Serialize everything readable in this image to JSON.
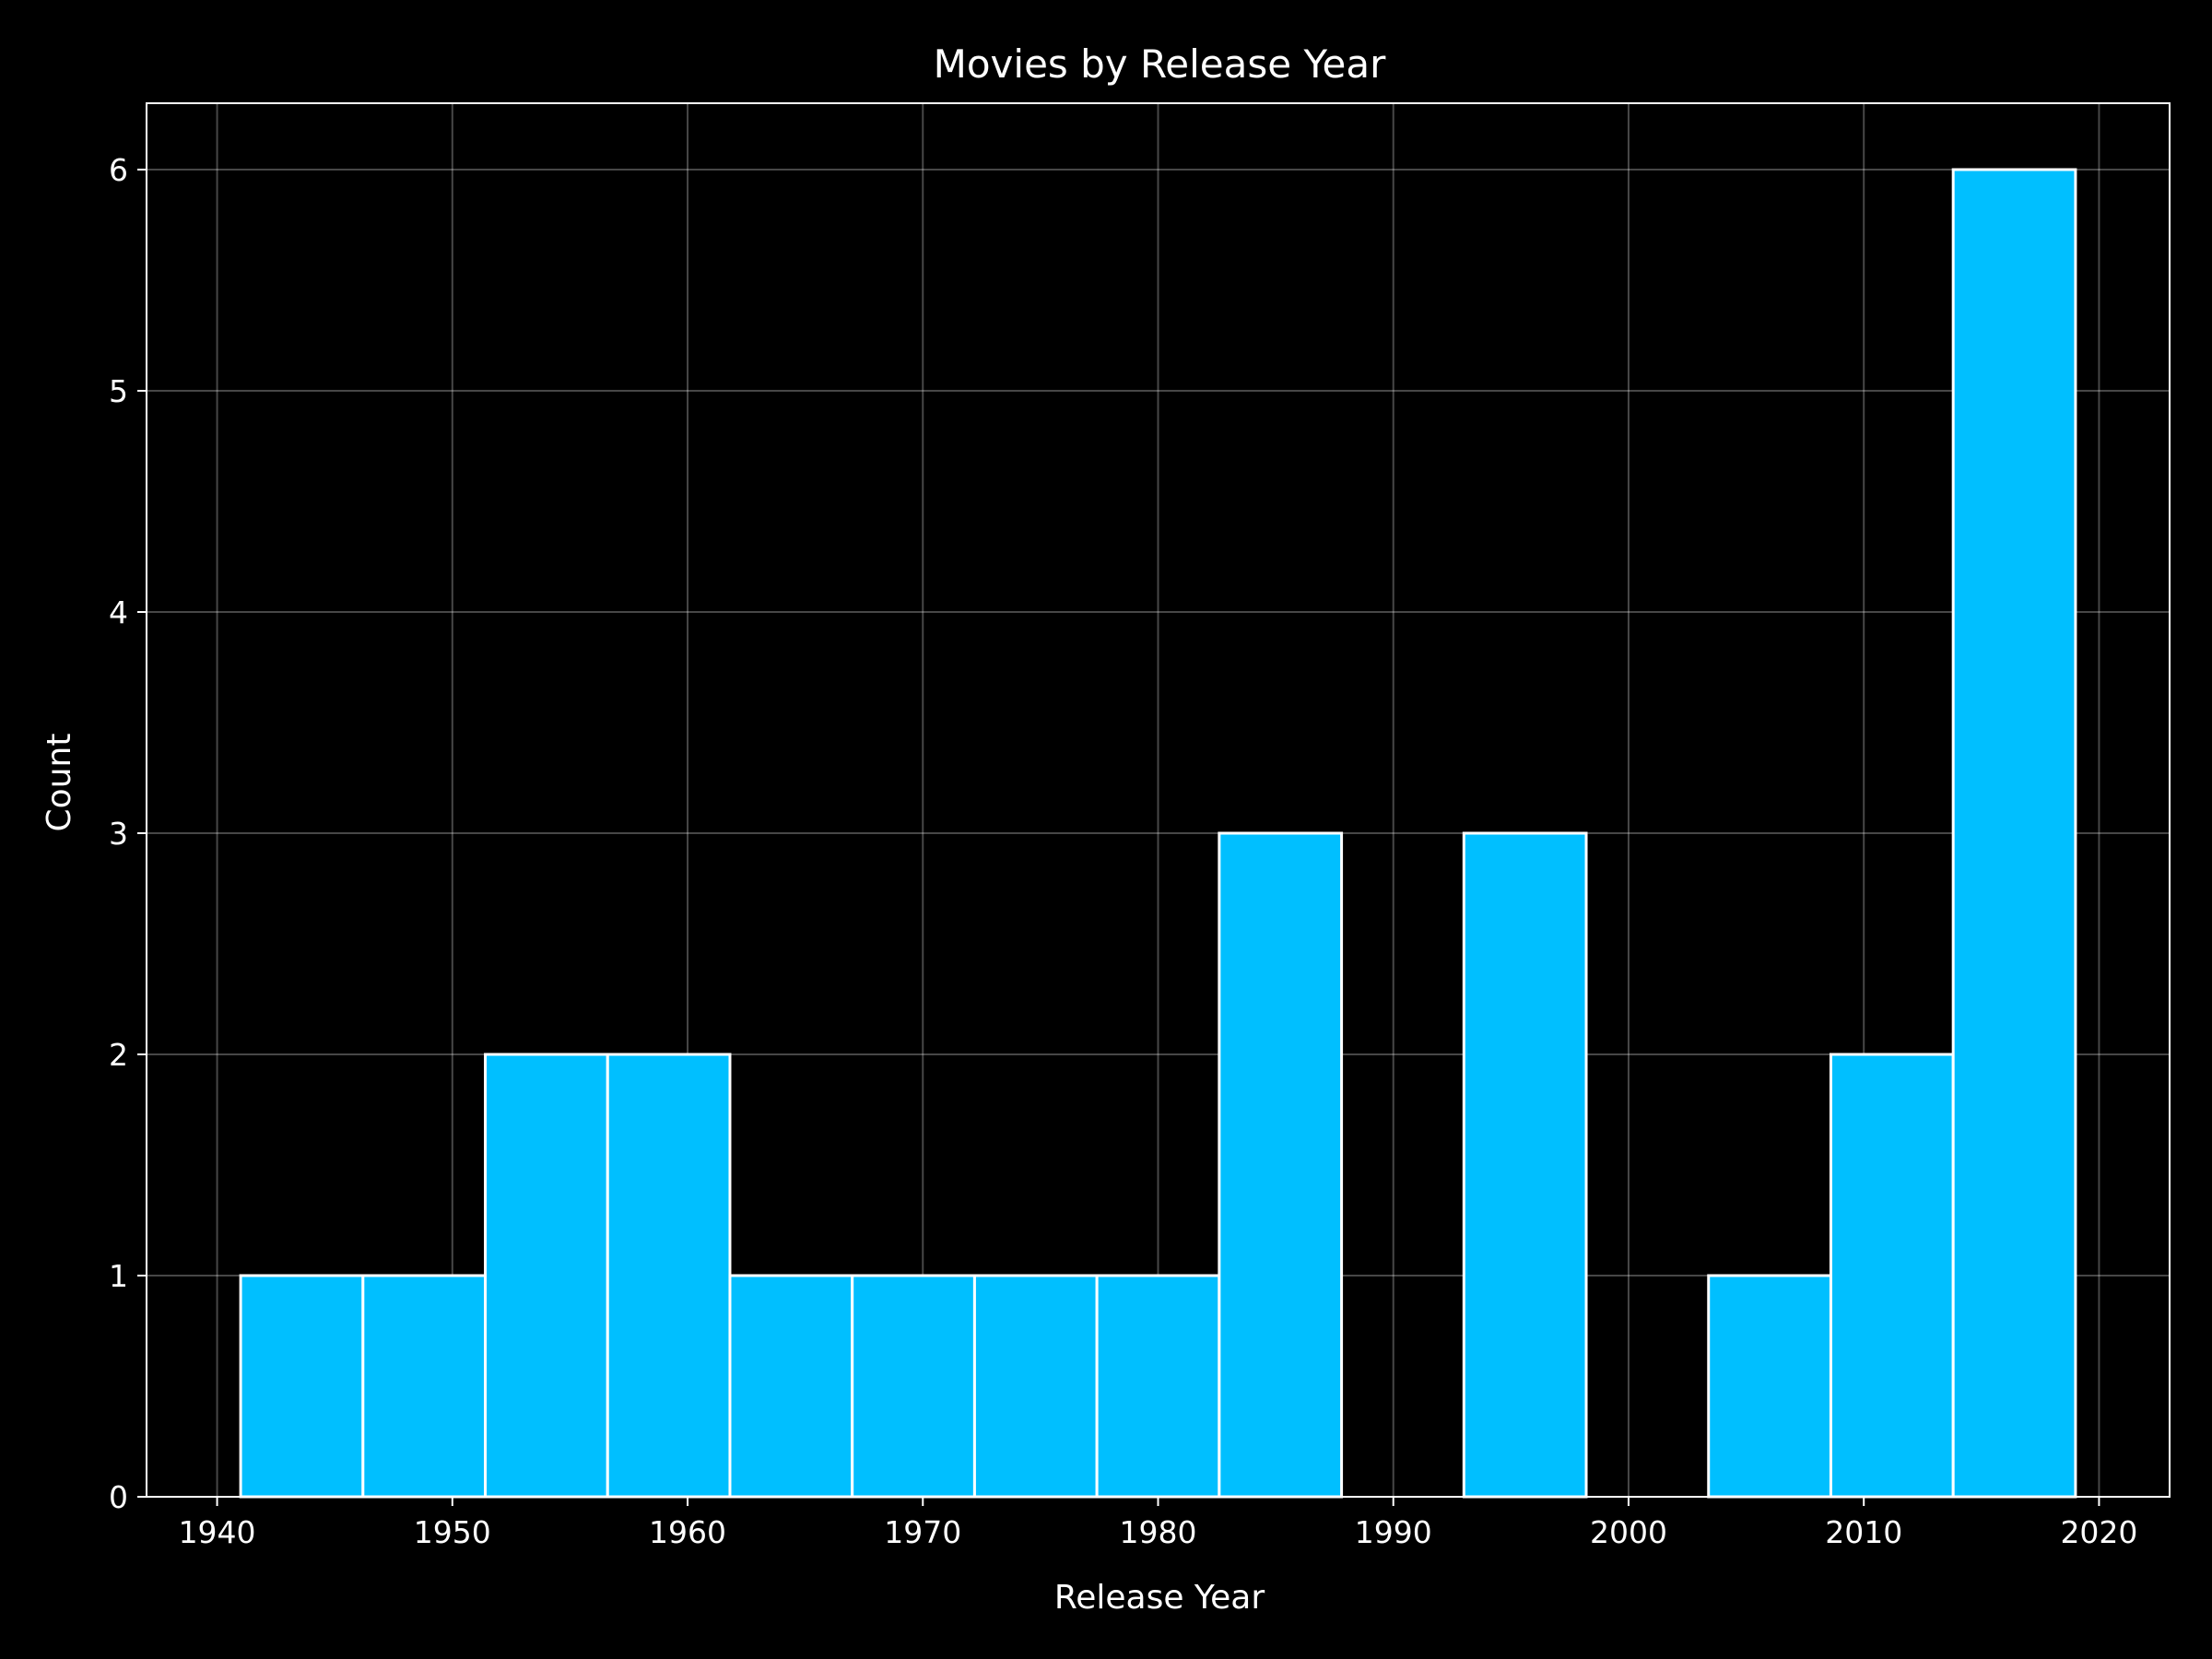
{
  "chart_data": {
    "type": "bar",
    "title": "Movies by Release Year",
    "xlabel": "Release Year",
    "ylabel": "Count",
    "xlim": [
      1937,
      2023
    ],
    "ylim": [
      0,
      6.3
    ],
    "x_ticks": [
      1940,
      1950,
      1960,
      1970,
      1980,
      1990,
      2000,
      2010,
      2020
    ],
    "y_ticks": [
      0,
      1,
      2,
      3,
      4,
      5,
      6
    ],
    "grid": true,
    "bins": [
      {
        "start": 1941.0,
        "end": 1946.2,
        "count": 1
      },
      {
        "start": 1946.2,
        "end": 1951.4,
        "count": 1
      },
      {
        "start": 1951.4,
        "end": 1956.6,
        "count": 2
      },
      {
        "start": 1956.6,
        "end": 1961.8,
        "count": 2
      },
      {
        "start": 1961.8,
        "end": 1967.0,
        "count": 1
      },
      {
        "start": 1967.0,
        "end": 1972.2,
        "count": 1
      },
      {
        "start": 1972.2,
        "end": 1977.4,
        "count": 1
      },
      {
        "start": 1977.4,
        "end": 1982.6,
        "count": 1
      },
      {
        "start": 1982.6,
        "end": 1987.8,
        "count": 3
      },
      {
        "start": 1987.8,
        "end": 1993.0,
        "count": 0
      },
      {
        "start": 1993.0,
        "end": 1998.2,
        "count": 3
      },
      {
        "start": 1998.2,
        "end": 2003.4,
        "count": 0
      },
      {
        "start": 2003.4,
        "end": 2008.6,
        "count": 1
      },
      {
        "start": 2008.6,
        "end": 2013.8,
        "count": 2
      },
      {
        "start": 2013.8,
        "end": 2019.0,
        "count": 6
      }
    ],
    "colors": {
      "background": "#000000",
      "bar_fill": "#00bfff",
      "bar_edge": "#ffffff",
      "axis": "#ffffff",
      "grid": "#ffffff"
    }
  }
}
